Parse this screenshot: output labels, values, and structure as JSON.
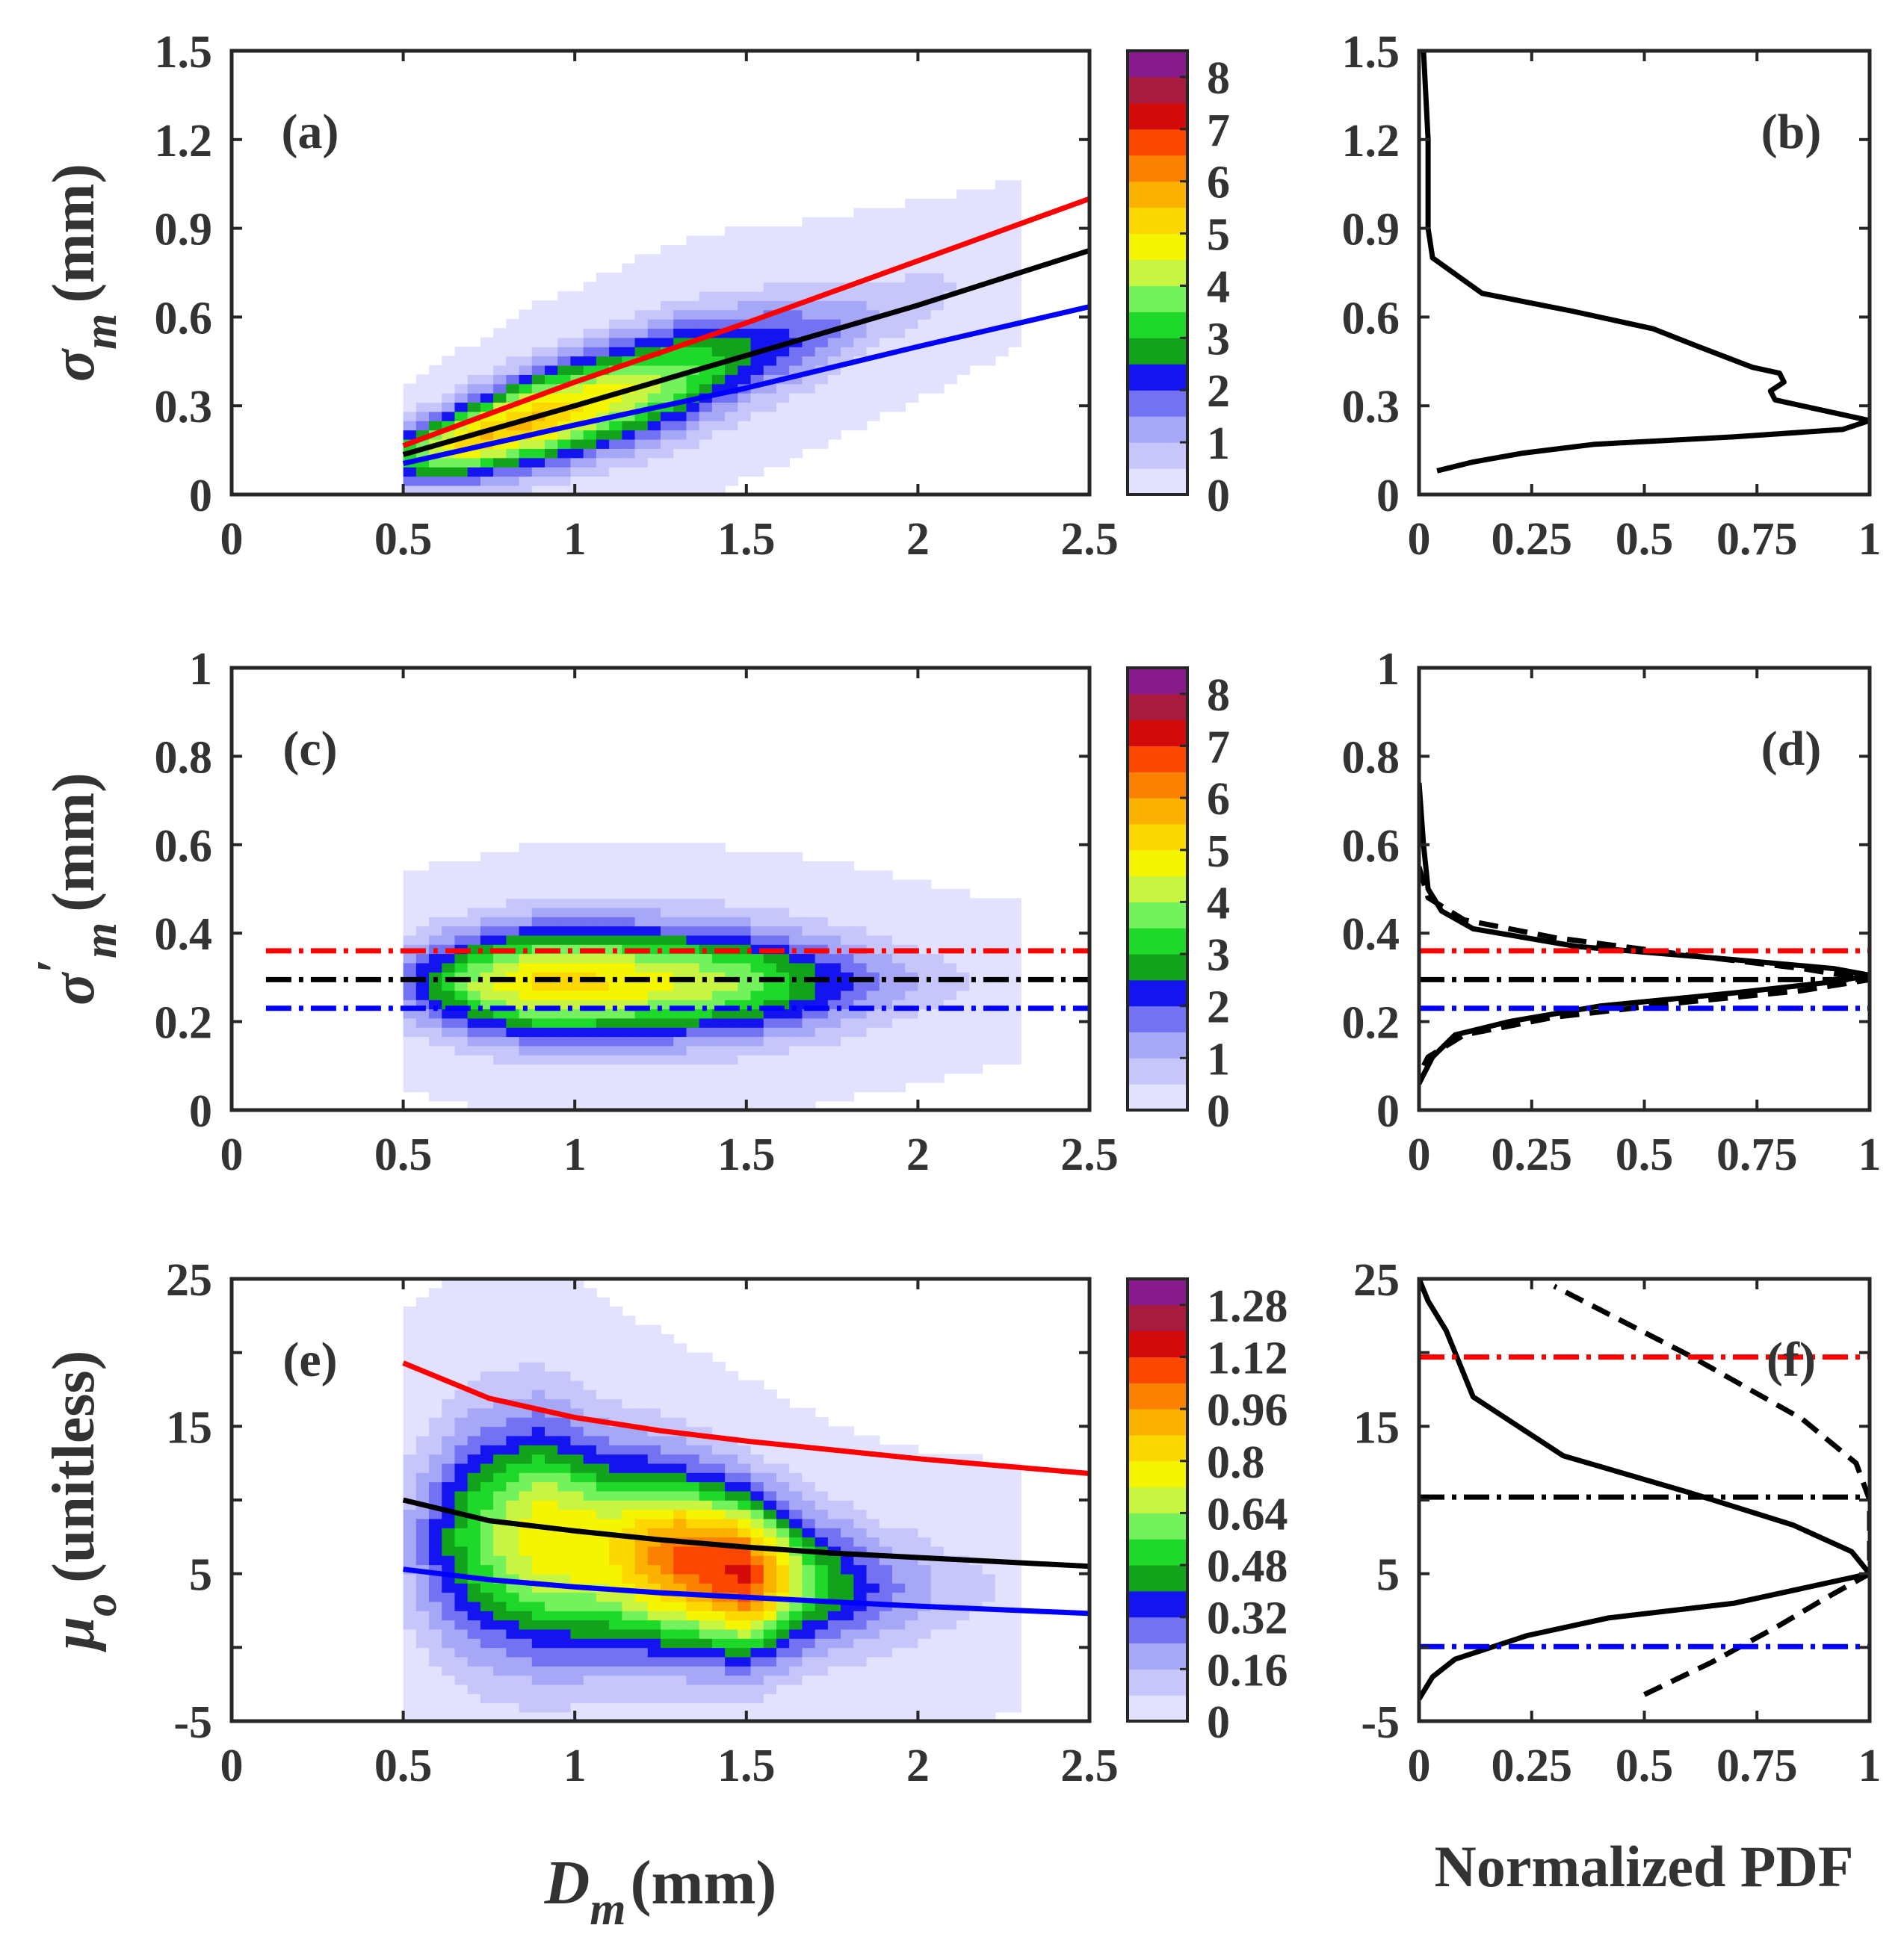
{
  "figure": {
    "shared_xlabel_main": "D",
    "shared_xlabel_sub": "m",
    "shared_xlabel_unit": "(mm)",
    "shared_xlabel_pdf": "Normalized PDF"
  },
  "chart_data": [
    {
      "id": "a",
      "panel_label": "(a)",
      "type": "heatmap",
      "title": "",
      "xlabel": "D_m (mm)",
      "ylabel_symbol": "σ",
      "ylabel_sub": "m",
      "ylabel_unit": "(mm)",
      "xlim": [
        0,
        2.5
      ],
      "ylim": [
        0,
        1.5
      ],
      "xticks": [
        0,
        0.5,
        1,
        1.5,
        2,
        2.5
      ],
      "xticklabels": [
        "0",
        "0.5",
        "1",
        "1.5",
        "2",
        "2.5"
      ],
      "yticks": [
        0,
        0.3,
        0.6,
        0.9,
        1.2,
        1.5
      ],
      "yticklabels": [
        "0",
        "0.3",
        "0.6",
        "0.9",
        "1.2",
        "1.5"
      ],
      "density_ridge": {
        "x": [
          0.5,
          0.7,
          0.9,
          1.1,
          1.3,
          1.5,
          1.7,
          1.9,
          2.1,
          2.3
        ],
        "y": [
          0.13,
          0.19,
          0.26,
          0.33,
          0.4,
          0.48,
          0.54,
          0.62,
          0.7,
          0.78
        ]
      },
      "density_halfwidth": [
        0.07,
        0.09,
        0.11,
        0.12,
        0.13,
        0.12,
        0.11,
        0.1,
        0.09,
        0.08
      ],
      "density_peak": [
        3.2,
        5.5,
        5.6,
        4.8,
        3.8,
        2.6,
        1.8,
        0.9,
        0.5,
        0.25
      ],
      "colorbar": {
        "ticks": [
          0,
          1,
          2,
          3,
          4,
          5,
          6,
          7,
          8
        ],
        "max": 8.5,
        "levels": 17
      },
      "series": [
        {
          "name": "red fit",
          "color": "#ff0000",
          "style": "solid",
          "x": [
            0.5,
            1.0,
            1.5,
            2.0,
            2.5
          ],
          "y": [
            0.165,
            0.38,
            0.58,
            0.79,
            1.0
          ]
        },
        {
          "name": "black fit",
          "color": "#000000",
          "style": "solid",
          "x": [
            0.5,
            1.0,
            1.5,
            2.0,
            2.5
          ],
          "y": [
            0.135,
            0.3,
            0.47,
            0.64,
            0.825
          ]
        },
        {
          "name": "blue fit",
          "color": "#0000ff",
          "style": "solid",
          "x": [
            0.5,
            1.0,
            1.5,
            2.0,
            2.5
          ],
          "y": [
            0.105,
            0.235,
            0.36,
            0.5,
            0.635
          ]
        }
      ]
    },
    {
      "id": "b",
      "panel_label": "(b)",
      "type": "line",
      "xlim": [
        0,
        1
      ],
      "ylim": [
        0,
        1.5
      ],
      "xticks": [
        0,
        0.25,
        0.5,
        0.75,
        1
      ],
      "xticklabels": [
        "0",
        "0.25",
        "0.5",
        "0.75",
        "1"
      ],
      "yticks": [
        0,
        0.3,
        0.6,
        0.9,
        1.2,
        1.5
      ],
      "yticklabels": [
        "0",
        "0.3",
        "0.6",
        "0.9",
        "1.2",
        "1.5"
      ],
      "xlabel": "Normalized PDF",
      "series": [
        {
          "name": "normalized PDF of σm",
          "color": "#000000",
          "style": "solid",
          "x": [
            0.01,
            0.02,
            0.02,
            0.03,
            0.14,
            0.34,
            0.52,
            0.62,
            0.74,
            0.8,
            0.81,
            0.78,
            0.79,
            0.88,
            1.0,
            0.94,
            0.7,
            0.39,
            0.23,
            0.12,
            0.04
          ],
          "y": [
            1.5,
            1.2,
            0.9,
            0.8,
            0.68,
            0.62,
            0.56,
            0.5,
            0.43,
            0.41,
            0.38,
            0.35,
            0.32,
            0.29,
            0.25,
            0.22,
            0.195,
            0.17,
            0.14,
            0.11,
            0.08
          ]
        }
      ]
    },
    {
      "id": "c",
      "panel_label": "(c)",
      "type": "heatmap",
      "xlabel": "D_m (mm)",
      "ylabel_symbol": "σ",
      "ylabel_sub": "m",
      "ylabel_prime": "′",
      "ylabel_unit": "(mm)",
      "xlim": [
        0,
        2.5
      ],
      "ylim": [
        0,
        1
      ],
      "xticks": [
        0,
        0.5,
        1,
        1.5,
        2,
        2.5
      ],
      "xticklabels": [
        "0",
        "0.5",
        "1",
        "1.5",
        "2",
        "2.5"
      ],
      "yticks": [
        0,
        0.2,
        0.4,
        0.6,
        0.8,
        1
      ],
      "yticklabels": [
        "0",
        "0.2",
        "0.4",
        "0.6",
        "0.8",
        "1"
      ],
      "density_ridge": {
        "x": [
          0.5,
          0.7,
          0.9,
          1.1,
          1.3,
          1.5,
          1.7,
          1.9,
          2.1,
          2.3
        ],
        "y": [
          0.29,
          0.29,
          0.29,
          0.29,
          0.29,
          0.29,
          0.29,
          0.29,
          0.29,
          0.29
        ]
      },
      "density_halfwidth": [
        0.07,
        0.08,
        0.09,
        0.09,
        0.09,
        0.085,
        0.08,
        0.07,
        0.06,
        0.05
      ],
      "density_peak": [
        1.6,
        4.0,
        5.3,
        5.0,
        4.5,
        3.9,
        2.6,
        1.4,
        0.6,
        0.3
      ],
      "colorbar": {
        "ticks": [
          0,
          1,
          2,
          3,
          4,
          5,
          6,
          7,
          8
        ],
        "max": 8.5,
        "levels": 17
      },
      "series": [
        {
          "name": "red level",
          "color": "#ff0000",
          "style": "dashdot",
          "x": [
            0.1,
            2.5
          ],
          "y": [
            0.36,
            0.36
          ]
        },
        {
          "name": "black level",
          "color": "#000000",
          "style": "dashdot",
          "x": [
            0.1,
            2.5
          ],
          "y": [
            0.295,
            0.295
          ]
        },
        {
          "name": "blue level",
          "color": "#0000ff",
          "style": "dashdot",
          "x": [
            0.1,
            2.5
          ],
          "y": [
            0.23,
            0.23
          ]
        }
      ]
    },
    {
      "id": "d",
      "panel_label": "(d)",
      "type": "line",
      "xlim": [
        0,
        1
      ],
      "ylim": [
        0,
        1
      ],
      "xticks": [
        0,
        0.25,
        0.5,
        0.75,
        1
      ],
      "xticklabels": [
        "0",
        "0.25",
        "0.5",
        "0.75",
        "1"
      ],
      "yticks": [
        0,
        0.2,
        0.4,
        0.6,
        0.8,
        1
      ],
      "yticklabels": [
        "0",
        "0.2",
        "0.4",
        "0.6",
        "0.8",
        "1"
      ],
      "xlabel": "Normalized PDF",
      "series": [
        {
          "name": "normalized PDF of σm′",
          "color": "#000000",
          "style": "solid",
          "x": [
            0.0,
            0.01,
            0.02,
            0.05,
            0.12,
            0.35,
            0.7,
            0.92,
            1.0,
            0.92,
            0.7,
            0.4,
            0.2,
            0.08,
            0.03,
            0.01,
            0.0
          ],
          "y": [
            0.74,
            0.6,
            0.5,
            0.45,
            0.41,
            0.37,
            0.34,
            0.32,
            0.305,
            0.29,
            0.265,
            0.235,
            0.2,
            0.17,
            0.12,
            0.08,
            0.06
          ]
        },
        {
          "name": "fitted Gaussian",
          "color": "#000000",
          "style": "dashed",
          "x": [
            0.0,
            0.02,
            0.1,
            0.3,
            0.6,
            0.85,
            1.0,
            0.85,
            0.6,
            0.3,
            0.1,
            0.02,
            0.0
          ],
          "y": [
            0.55,
            0.48,
            0.43,
            0.39,
            0.35,
            0.32,
            0.295,
            0.27,
            0.245,
            0.21,
            0.17,
            0.12,
            0.08
          ]
        },
        {
          "name": "red level",
          "color": "#ff0000",
          "style": "dashdot",
          "x": [
            0,
            1
          ],
          "y": [
            0.36,
            0.36
          ]
        },
        {
          "name": "black level",
          "color": "#000000",
          "style": "dashdot",
          "x": [
            0,
            1
          ],
          "y": [
            0.295,
            0.295
          ]
        },
        {
          "name": "blue level",
          "color": "#0000ff",
          "style": "dashdot",
          "x": [
            0,
            1
          ],
          "y": [
            0.23,
            0.23
          ]
        }
      ]
    },
    {
      "id": "e",
      "panel_label": "(e)",
      "type": "heatmap",
      "xlabel_main": "D",
      "xlabel_sub": "m",
      "xlabel_unit": "(mm)",
      "ylabel_symbol": "μ",
      "ylabel_sub": "o",
      "ylabel_unit": "(unitless)",
      "xlim": [
        0,
        2.5
      ],
      "ylim": [
        -5,
        25
      ],
      "xticks": [
        0,
        0.5,
        1,
        1.5,
        2,
        2.5
      ],
      "xticklabels": [
        "0",
        "0.5",
        "1",
        "1.5",
        "2",
        "2.5"
      ],
      "yticks": [
        -5,
        0,
        5,
        10,
        15,
        20,
        25
      ],
      "yticklabels": [
        "-5",
        "",
        "5",
        "",
        "15",
        "",
        "25"
      ],
      "density_ridge": {
        "x": [
          0.5,
          0.7,
          0.9,
          1.1,
          1.3,
          1.5,
          1.7,
          1.9,
          2.1,
          2.3
        ],
        "y": [
          7.0,
          7.5,
          7.5,
          6.5,
          6.0,
          5.0,
          4.5,
          4.0,
          4.0,
          4.0
        ]
      },
      "density_halfwidth": [
        4.5,
        5.5,
        5.5,
        4.8,
        4.2,
        3.8,
        3.2,
        2.8,
        2.6,
        2.4
      ],
      "density_peak": [
        0.14,
        0.55,
        0.8,
        0.8,
        1.05,
        1.15,
        0.55,
        0.28,
        0.12,
        0.06
      ],
      "colorbar": {
        "ticks": [
          0,
          0.16,
          0.32,
          0.48,
          0.64,
          0.8,
          0.96,
          1.12,
          1.28
        ],
        "ticklabels": [
          "0",
          "0.16",
          "0.32",
          "0.48",
          "0.64",
          "0.8",
          "0.96",
          "1.12",
          "1.28"
        ],
        "max": 1.36,
        "levels": 17
      },
      "series": [
        {
          "name": "red fit",
          "color": "#ff0000",
          "style": "solid",
          "x": [
            0.5,
            0.75,
            1.0,
            1.25,
            1.5,
            1.75,
            2.0,
            2.25,
            2.5
          ],
          "y": [
            19.3,
            16.9,
            15.6,
            14.7,
            14.0,
            13.4,
            12.8,
            12.3,
            11.8
          ]
        },
        {
          "name": "black fit",
          "color": "#000000",
          "style": "solid",
          "x": [
            0.5,
            0.75,
            1.0,
            1.25,
            1.5,
            1.75,
            2.0,
            2.25,
            2.5
          ],
          "y": [
            10.0,
            8.6,
            7.9,
            7.3,
            6.8,
            6.4,
            6.1,
            5.8,
            5.5
          ]
        },
        {
          "name": "blue fit",
          "color": "#0000ff",
          "style": "solid",
          "x": [
            0.5,
            0.75,
            1.0,
            1.25,
            1.5,
            1.75,
            2.0,
            2.25,
            2.5
          ],
          "y": [
            5.3,
            4.6,
            4.1,
            3.7,
            3.4,
            3.1,
            2.8,
            2.55,
            2.3
          ]
        }
      ]
    },
    {
      "id": "f",
      "panel_label": "(f)",
      "type": "line",
      "xlabel": "Normalized PDF",
      "xlim": [
        0,
        1
      ],
      "ylim": [
        -5,
        25
      ],
      "xticks": [
        0,
        0.25,
        0.5,
        0.75,
        1
      ],
      "xticklabels": [
        "0",
        "0.25",
        "0.5",
        "0.75",
        "1"
      ],
      "yticks": [
        -5,
        0,
        5,
        10,
        15,
        20,
        25
      ],
      "yticklabels": [
        "-5",
        "",
        "5",
        "",
        "15",
        "",
        "25"
      ],
      "series": [
        {
          "name": "normalized PDF of μo",
          "color": "#000000",
          "style": "solid",
          "x": [
            0.0,
            0.02,
            0.06,
            0.12,
            0.32,
            0.6,
            0.83,
            0.96,
            1.0,
            0.7,
            0.42,
            0.24,
            0.08,
            0.03,
            0.0
          ],
          "y": [
            25,
            23.5,
            21.5,
            17.0,
            13.0,
            10.5,
            8.3,
            6.5,
            5.0,
            3.0,
            2.0,
            0.8,
            -0.8,
            -2.0,
            -3.5
          ]
        },
        {
          "name": "fitted curve",
          "color": "#000000",
          "style": "dashed",
          "x": [
            0.5,
            0.65,
            0.8,
            0.9,
            1.0,
            1.0,
            0.97,
            0.85,
            0.6,
            0.3
          ],
          "y": [
            -3.2,
            -1.0,
            1.5,
            3.3,
            5.0,
            10.0,
            12.5,
            15.5,
            19.8,
            24.5
          ]
        },
        {
          "name": "red level",
          "color": "#ff0000",
          "style": "dashdot",
          "x": [
            0,
            1
          ],
          "y": [
            19.7,
            19.7
          ]
        },
        {
          "name": "black level",
          "color": "#000000",
          "style": "dashdot",
          "x": [
            0,
            1
          ],
          "y": [
            10.2,
            10.2
          ]
        },
        {
          "name": "blue level",
          "color": "#0000ff",
          "style": "dashdot",
          "x": [
            0,
            1
          ],
          "y": [
            0.05,
            0.05
          ]
        }
      ]
    }
  ]
}
